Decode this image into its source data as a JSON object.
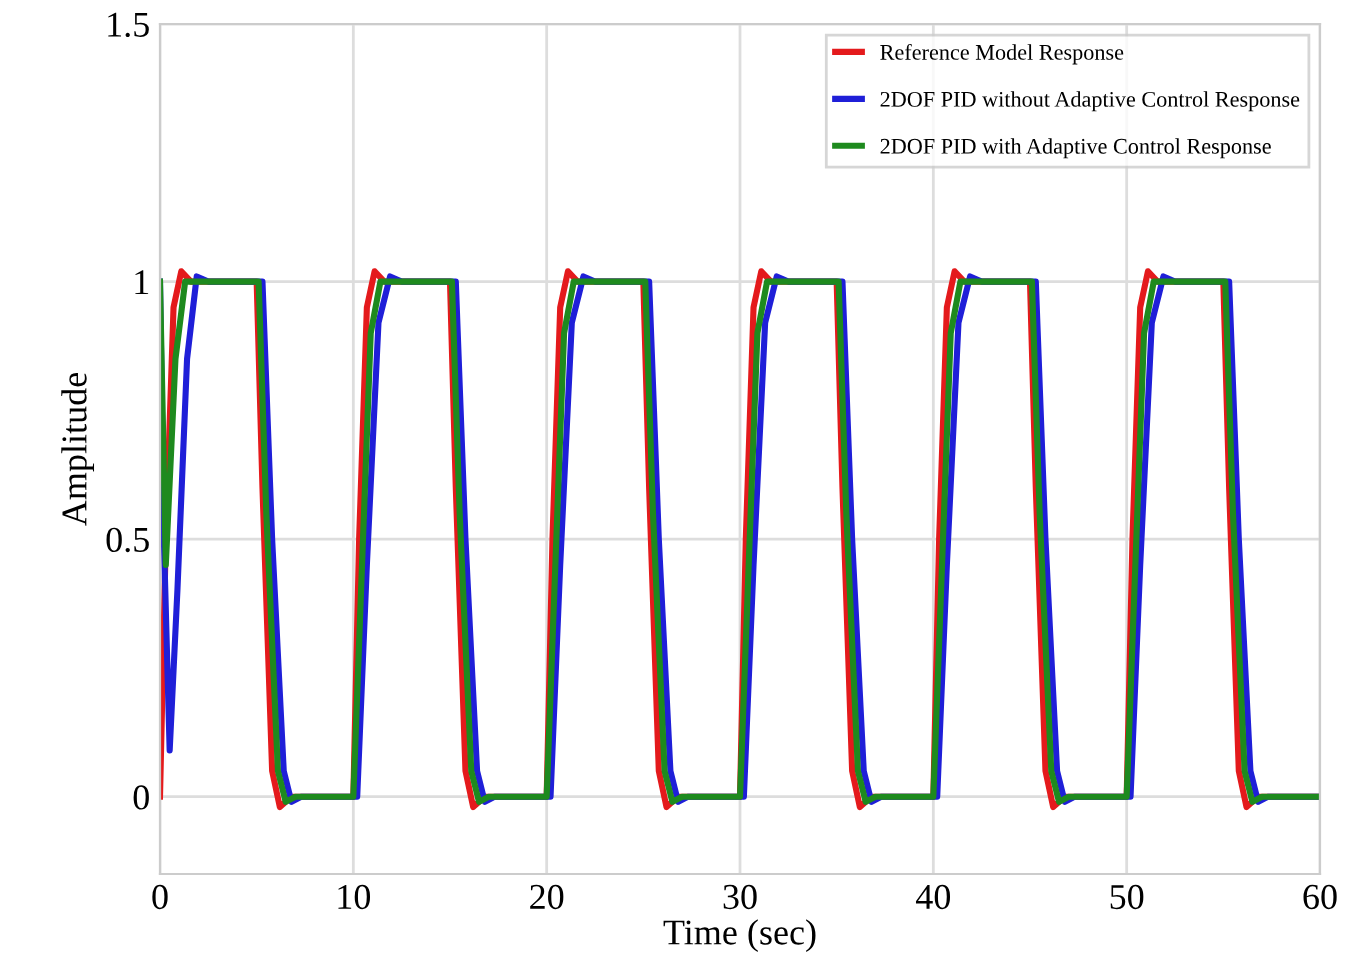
{
  "chart_data": {
    "type": "line",
    "xlabel": "Time (sec)",
    "ylabel": "Amplitude",
    "xlim": [
      0,
      60
    ],
    "xticks": [
      0,
      10,
      20,
      30,
      40,
      50,
      60
    ],
    "ylim": [
      -0.15,
      1.5
    ],
    "yticks": [
      0,
      0.5,
      1,
      1.5
    ],
    "grid": true,
    "legend": "top right",
    "line_style": "solid",
    "marker": "none",
    "series": [
      {
        "name": "Reference Model Response",
        "color": "#e41a1c",
        "x": [
          0,
          0.3,
          0.7,
          1.1,
          1.6,
          5,
          5.3,
          5.8,
          6.2,
          6.8,
          10,
          10.3,
          10.7,
          11.1,
          11.6,
          15,
          15.3,
          15.8,
          16.2,
          16.8,
          20,
          20.3,
          20.7,
          21.1,
          21.6,
          25,
          25.3,
          25.8,
          26.2,
          26.8,
          30,
          30.3,
          30.7,
          31.1,
          31.6,
          35,
          35.3,
          35.8,
          36.2,
          36.8,
          40,
          40.3,
          40.7,
          41.1,
          41.6,
          45,
          45.3,
          45.8,
          46.2,
          46.8,
          50,
          50.3,
          50.7,
          51.1,
          51.6,
          55,
          55.3,
          55.8,
          56.2,
          56.8,
          60
        ],
        "values": [
          0,
          0.5,
          0.95,
          1.02,
          1,
          1,
          0.6,
          0.05,
          -0.02,
          0,
          0,
          0.5,
          0.95,
          1.02,
          1,
          1,
          0.6,
          0.05,
          -0.02,
          0,
          0,
          0.5,
          0.95,
          1.02,
          1,
          1,
          0.6,
          0.05,
          -0.02,
          0,
          0,
          0.5,
          0.95,
          1.02,
          1,
          1,
          0.6,
          0.05,
          -0.02,
          0,
          0,
          0.5,
          0.95,
          1.02,
          1,
          1,
          0.6,
          0.05,
          -0.02,
          0,
          0,
          0.5,
          0.95,
          1.02,
          1,
          1,
          0.6,
          0.05,
          -0.02,
          0,
          0
        ]
      },
      {
        "name": "2DOF PID without Adaptive Control Response",
        "color": "#1f1fd8",
        "x": [
          0,
          0.2,
          0.5,
          0.9,
          1.4,
          1.9,
          2.5,
          5.3,
          5.8,
          6.4,
          6.8,
          7.3,
          10.2,
          10.7,
          11.3,
          11.9,
          12.5,
          15.3,
          15.8,
          16.4,
          16.8,
          17.3,
          20.2,
          20.7,
          21.3,
          21.9,
          22.5,
          25.3,
          25.8,
          26.4,
          26.8,
          27.3,
          30.2,
          30.7,
          31.3,
          31.9,
          32.5,
          35.3,
          35.8,
          36.4,
          36.8,
          37.3,
          40.2,
          40.7,
          41.3,
          41.9,
          42.5,
          45.3,
          45.8,
          46.4,
          46.8,
          47.3,
          50.2,
          50.7,
          51.3,
          51.9,
          52.5,
          55.3,
          55.8,
          56.4,
          56.8,
          57.3,
          60
        ],
        "values": [
          1,
          0.5,
          0.09,
          0.4,
          0.85,
          1.01,
          1,
          1,
          0.5,
          0.05,
          -0.01,
          0,
          0,
          0.45,
          0.92,
          1.01,
          1,
          1,
          0.5,
          0.05,
          -0.01,
          0,
          0,
          0.45,
          0.92,
          1.01,
          1,
          1,
          0.5,
          0.05,
          -0.01,
          0,
          0,
          0.45,
          0.92,
          1.01,
          1,
          1,
          0.5,
          0.05,
          -0.01,
          0,
          0,
          0.45,
          0.92,
          1.01,
          1,
          1,
          0.5,
          0.05,
          -0.01,
          0,
          0,
          0.45,
          0.92,
          1.01,
          1,
          1,
          0.5,
          0.05,
          -0.01,
          0,
          0
        ]
      },
      {
        "name": "2DOF PID with Adaptive Control Response",
        "color": "#1e8a1e",
        "x": [
          0,
          0.3,
          0.8,
          1.3,
          5.1,
          5.5,
          6.1,
          6.5,
          7,
          10,
          10.4,
          10.9,
          11.4,
          15.1,
          15.5,
          16.1,
          16.5,
          17,
          20,
          20.4,
          20.9,
          21.4,
          25.1,
          25.5,
          26.1,
          26.5,
          27,
          30,
          30.4,
          30.9,
          31.4,
          35.1,
          35.5,
          36.1,
          36.5,
          37,
          40,
          40.4,
          40.9,
          41.4,
          45.1,
          45.5,
          46.1,
          46.5,
          47,
          50,
          50.4,
          50.9,
          51.4,
          55.1,
          55.5,
          56.1,
          56.5,
          57,
          60
        ],
        "values": [
          1,
          0.45,
          0.85,
          1,
          1,
          0.55,
          0.05,
          -0.01,
          0,
          0,
          0.4,
          0.9,
          1,
          1,
          0.55,
          0.05,
          -0.01,
          0,
          0,
          0.4,
          0.9,
          1,
          1,
          0.55,
          0.05,
          -0.01,
          0,
          0,
          0.4,
          0.9,
          1,
          1,
          0.55,
          0.05,
          -0.01,
          0,
          0,
          0.4,
          0.9,
          1,
          1,
          0.55,
          0.05,
          -0.01,
          0,
          0,
          0.4,
          0.9,
          1,
          1,
          0.55,
          0.05,
          -0.01,
          0,
          0
        ]
      }
    ]
  }
}
